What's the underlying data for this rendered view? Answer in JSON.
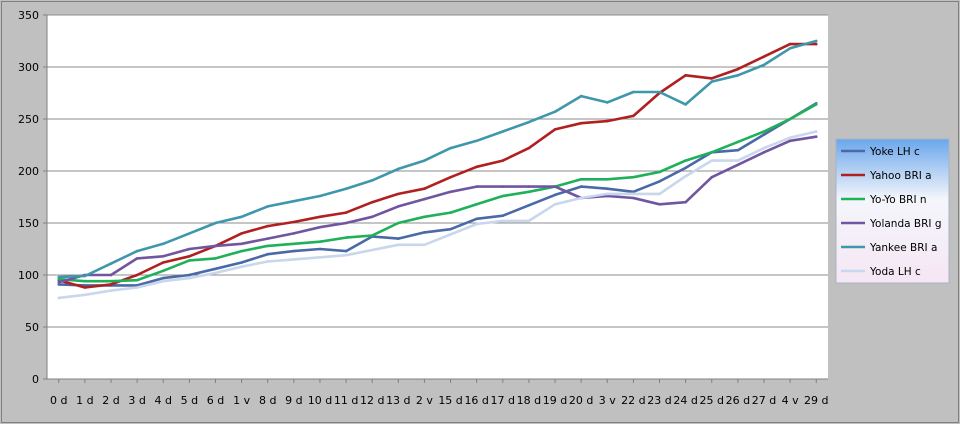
{
  "chart_data": {
    "type": "line",
    "categories": [
      "0 d",
      "1 d",
      "2 d",
      "3 d",
      "4 d",
      "5 d",
      "6 d",
      "1 v",
      "8 d",
      "9 d",
      "10 d",
      "11 d",
      "12 d",
      "13 d",
      "2 v",
      "15 d",
      "16 d",
      "17 d",
      "18 d",
      "19 d",
      "20 d",
      "3 v",
      "22 d",
      "23 d",
      "24 d",
      "25 d",
      "26 d",
      "27 d",
      "4 v",
      "29 d"
    ],
    "ylim": [
      0,
      350
    ],
    "yticks": [
      0,
      50,
      100,
      150,
      200,
      250,
      300,
      350
    ],
    "grid": true,
    "legend_position": "right",
    "series": [
      {
        "name": "Yoke LH c",
        "color": "#4a69a8",
        "values": [
          91,
          90,
          90,
          90,
          97,
          100,
          106,
          112,
          120,
          123,
          125,
          123,
          137,
          135,
          141,
          144,
          154,
          157,
          167,
          177,
          185,
          183,
          180,
          190,
          203,
          218,
          220,
          235,
          250,
          265
        ]
      },
      {
        "name": "Yahoo BRI a",
        "color": "#b02020",
        "values": [
          95,
          88,
          91,
          100,
          112,
          118,
          128,
          140,
          147,
          151,
          156,
          160,
          170,
          178,
          183,
          194,
          204,
          210,
          222,
          240,
          246,
          248,
          253,
          275,
          292,
          289,
          298,
          310,
          322,
          322
        ]
      },
      {
        "name": "Yo-Yo BRI n",
        "color": "#1fb05a",
        "values": [
          96,
          94,
          94,
          95,
          104,
          114,
          116,
          123,
          128,
          130,
          132,
          136,
          138,
          150,
          156,
          160,
          168,
          176,
          180,
          185,
          192,
          192,
          194,
          199,
          210,
          218,
          228,
          238,
          250,
          264
        ]
      },
      {
        "name": "Yolanda BRI g",
        "color": "#7056a0",
        "values": [
          93,
          100,
          100,
          116,
          118,
          125,
          128,
          130,
          135,
          140,
          146,
          150,
          156,
          166,
          173,
          180,
          185,
          185,
          185,
          185,
          174,
          176,
          174,
          168,
          170,
          194,
          206,
          218,
          229,
          233
        ]
      },
      {
        "name": "Yankee BRI a",
        "color": "#3f97ac",
        "values": [
          98,
          99,
          111,
          123,
          130,
          140,
          150,
          156,
          166,
          171,
          176,
          183,
          191,
          202,
          210,
          222,
          229,
          238,
          247,
          257,
          272,
          266,
          276,
          276,
          264,
          286,
          292,
          302,
          318,
          325
        ]
      },
      {
        "name": "Yoda LH c",
        "color": "#c8d7ec",
        "values": [
          78,
          81,
          85,
          88,
          94,
          97,
          102,
          108,
          113,
          115,
          117,
          119,
          124,
          129,
          129,
          139,
          149,
          152,
          152,
          168,
          174,
          178,
          178,
          178,
          195,
          210,
          210,
          222,
          232,
          238
        ]
      }
    ]
  }
}
